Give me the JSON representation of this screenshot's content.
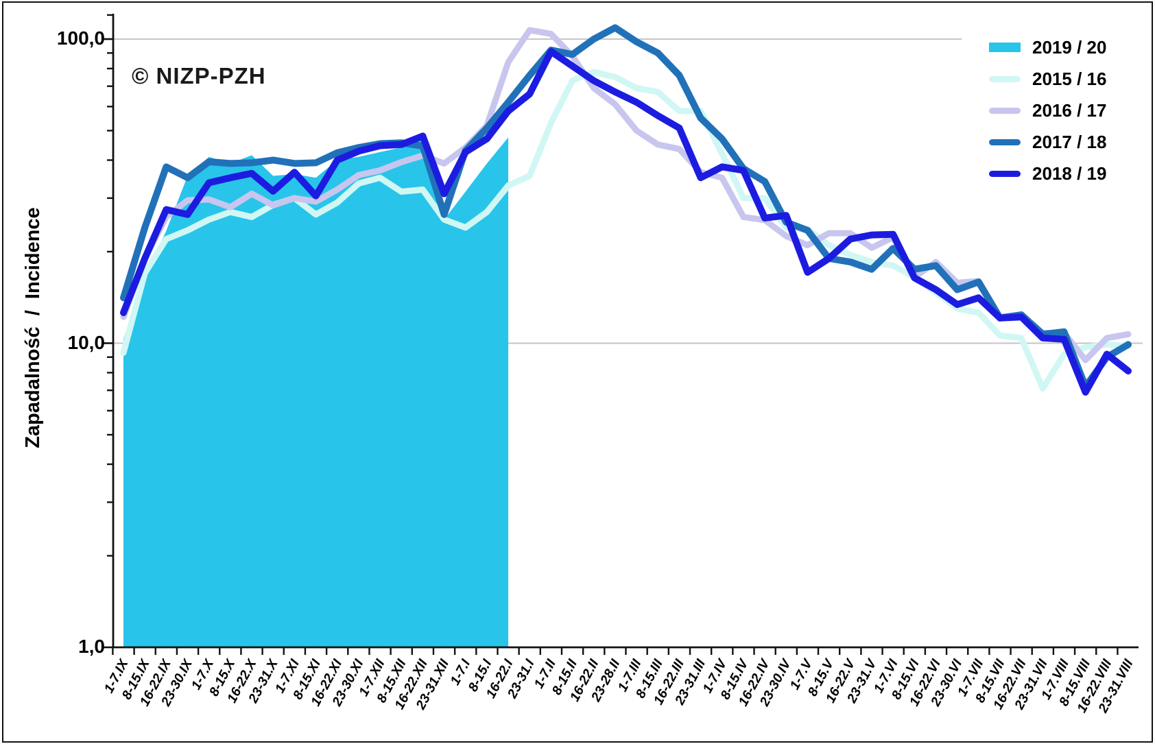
{
  "watermark": "© NIZP-PZH",
  "y_axis": {
    "title": "Zapadalność  /  Incidence",
    "ticks": [
      {
        "label": "100,0",
        "value": 100
      },
      {
        "label": "10,0",
        "value": 10
      },
      {
        "label": "1,0",
        "value": 1
      }
    ]
  },
  "legend": {
    "items": [
      {
        "label": "2019 / 20",
        "color": "#29C4EA",
        "swatch": "area"
      },
      {
        "label": "2015 / 16",
        "color": "#D0F7F4",
        "swatch": "line"
      },
      {
        "label": "2016 / 17",
        "color": "#C8C6EE",
        "swatch": "line"
      },
      {
        "label": "2017 / 18",
        "color": "#2171B9",
        "swatch": "line"
      },
      {
        "label": "2018 / 19",
        "color": "#1C1CE0",
        "swatch": "line"
      }
    ]
  },
  "chart_data": {
    "type": "line",
    "y_scale": "log",
    "ylim": [
      1,
      120
    ],
    "grid": "horizontal-major",
    "gridline_values": [
      100,
      10
    ],
    "legend_position": "top-right",
    "ylabel": "Zapadalność / Incidence",
    "xlabel": "",
    "categories": [
      "1-7.IX",
      "8-15.IX",
      "16-22.IX",
      "23-30.IX",
      "1-7.X",
      "8-15.X",
      "16-22.X",
      "23-31.X",
      "1-7.XI",
      "8-15.XI",
      "16-22.XI",
      "23-30.XI",
      "1-7.XII",
      "8-15.XII",
      "16-22.XII",
      "23-31.XII",
      "1-7.I",
      "8-15.I",
      "16-22.I",
      "23-31.I",
      "1-7.II",
      "8-15.II",
      "16-22.II",
      "23-28.II",
      "1-7.III",
      "8-15.III",
      "16-22.III",
      "23-31.III",
      "1-7.IV",
      "8-15.IV",
      "16-22.IV",
      "23-30.IV",
      "1-7.V",
      "8-15.V",
      "16-22.V",
      "23-31.V",
      "1-7.VI",
      "8-15.VI",
      "16-22.VI",
      "23-30.VI",
      "1-7.VII",
      "8-15.VII",
      "16-22.VII",
      "23-31.VII",
      "1-7.VIII",
      "8-15.VIII",
      "16-22.VIII",
      "23-31.VIII"
    ],
    "series": [
      {
        "name": "2019 / 20",
        "style": "area",
        "color": "#29C4EA",
        "values": [
          10.3,
          16.5,
          23.4,
          35.5,
          41,
          39,
          41.5,
          35.5,
          36,
          35,
          40,
          41,
          42.5,
          44,
          48,
          25.5,
          31.5,
          39,
          47.5
        ]
      },
      {
        "name": "2015 / 16",
        "style": "line",
        "color": "#D0F7F4",
        "width": 9,
        "values": [
          9.3,
          17,
          22,
          23.5,
          25.5,
          27,
          26,
          28.5,
          30,
          26.5,
          29,
          33.5,
          35,
          31.5,
          32,
          25.5,
          24,
          27,
          33,
          35.5,
          53,
          73,
          78,
          75,
          69,
          67,
          58,
          58,
          42,
          30,
          30,
          24,
          23.7,
          21,
          19.5,
          18.5,
          18,
          16.5,
          14.7,
          13,
          12.6,
          10.6,
          10.4,
          7.1,
          9.2,
          9.7,
          9.9,
          9.8
        ]
      },
      {
        "name": "2016 / 17",
        "style": "line",
        "color": "#C8C6EE",
        "width": 9,
        "values": [
          12.2,
          19,
          26,
          29.5,
          29.7,
          28,
          31,
          28.4,
          30,
          29.2,
          32,
          35.7,
          37,
          39.4,
          41.4,
          39,
          44,
          52,
          84,
          107,
          104,
          88,
          69,
          61,
          50,
          45,
          43.5,
          36.5,
          35,
          26,
          25.4,
          22.5,
          21,
          23,
          23,
          20.6,
          22.3,
          16.5,
          18.5,
          15.8,
          16,
          12.2,
          12.4,
          10.8,
          10.8,
          8.8,
          10.4,
          10.7
        ]
      },
      {
        "name": "2017 / 18",
        "style": "line",
        "color": "#2171B9",
        "width": 10,
        "values": [
          14.1,
          24,
          38,
          35,
          39.5,
          39,
          39.2,
          40,
          39,
          39.2,
          42.3,
          44,
          45.3,
          45.6,
          44.5,
          26.5,
          43,
          51,
          62,
          76,
          92,
          89,
          100,
          109,
          98,
          90,
          76,
          55,
          47,
          37.5,
          34,
          25,
          23.5,
          19,
          18.5,
          17.5,
          20.5,
          17.5,
          18,
          15,
          15.9,
          12.1,
          12.4,
          10.7,
          10.9,
          7.2,
          9,
          9.9
        ]
      },
      {
        "name": "2018 / 19",
        "style": "line",
        "color": "#1C1CE0",
        "width": 10,
        "values": [
          12.6,
          19,
          27.5,
          26.5,
          33.7,
          35,
          36.2,
          31.6,
          36.5,
          30.5,
          40,
          42.8,
          44.6,
          45,
          48,
          31,
          42.5,
          47,
          58,
          66,
          91,
          81.5,
          73,
          67,
          62,
          56,
          51,
          35,
          38,
          37,
          25.8,
          26.3,
          17.1,
          19,
          22,
          22.7,
          22.8,
          16.4,
          15,
          13.4,
          14.1,
          12.1,
          12.2,
          10.4,
          10.3,
          6.9,
          9.2,
          8.1
        ]
      }
    ]
  }
}
